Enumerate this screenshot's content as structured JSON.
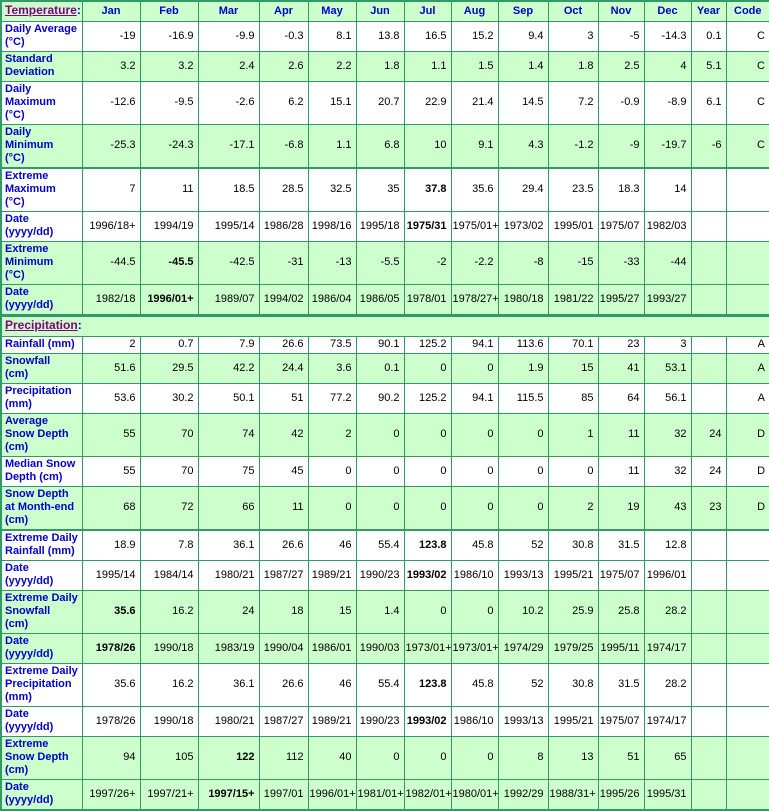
{
  "colors": {
    "border_green": "#339966",
    "row_green": "#CCFFCC",
    "row_white": "#FFFFFF",
    "label_blue": "#0000CC",
    "section_link_purple": "#800080"
  },
  "columns": [
    "Jan",
    "Feb",
    "Mar",
    "Apr",
    "May",
    "Jun",
    "Jul",
    "Aug",
    "Sep",
    "Oct",
    "Nov",
    "Dec",
    "Year",
    "Code"
  ],
  "temperature": {
    "title": "Temperature",
    "colon": ":",
    "rows": [
      {
        "label": "Daily Average\n(°C)",
        "bg": "white",
        "cells": [
          "-19",
          "-16.9",
          "-9.9",
          "-0.3",
          "8.1",
          "13.8",
          "16.5",
          "15.2",
          "9.4",
          "3",
          "-5",
          "-14.3",
          "0.1",
          "C"
        ],
        "bold": []
      },
      {
        "label": "Standard\nDeviation",
        "bg": "green",
        "cells": [
          "3.2",
          "3.2",
          "2.4",
          "2.6",
          "2.2",
          "1.8",
          "1.1",
          "1.5",
          "1.4",
          "1.8",
          "2.5",
          "4",
          "5.1",
          "C"
        ],
        "bold": []
      },
      {
        "label": "Daily\nMaximum\n(°C)",
        "bg": "white",
        "cells": [
          "-12.6",
          "-9.5",
          "-2.6",
          "6.2",
          "15.1",
          "20.7",
          "22.9",
          "21.4",
          "14.5",
          "7.2",
          "-0.9",
          "-8.9",
          "6.1",
          "C"
        ],
        "bold": []
      },
      {
        "label": "Daily\nMinimum\n(°C)",
        "bg": "green",
        "cells": [
          "-25.3",
          "-24.3",
          "-17.1",
          "-6.8",
          "1.1",
          "6.8",
          "10",
          "9.1",
          "4.3",
          "-1.2",
          "-9",
          "-19.7",
          "-6",
          "C"
        ],
        "bold": []
      },
      {
        "label": "Extreme\nMaximum\n(°C)",
        "bg": "white",
        "thick_top": true,
        "cells": [
          "7",
          "11",
          "18.5",
          "28.5",
          "32.5",
          "35",
          "37.8",
          "35.6",
          "29.4",
          "23.5",
          "18.3",
          "14",
          "",
          ""
        ],
        "bold": [
          6
        ]
      },
      {
        "label": "Date\n(yyyy/dd)",
        "bg": "white",
        "cells": [
          "1996/18+",
          "1994/19",
          "1995/14",
          "1986/28",
          "1998/16",
          "1995/18",
          "1975/31",
          "1975/01+",
          "1973/02",
          "1995/01",
          "1975/07",
          "1982/03",
          "",
          ""
        ],
        "bold": [
          6
        ]
      },
      {
        "label": "Extreme\nMinimum\n(°C)",
        "bg": "green",
        "cells": [
          "-44.5",
          "-45.5",
          "-42.5",
          "-31",
          "-13",
          "-5.5",
          "-2",
          "-2.2",
          "-8",
          "-15",
          "-33",
          "-44",
          "",
          ""
        ],
        "bold": [
          1
        ]
      },
      {
        "label": "Date\n(yyyy/dd)",
        "bg": "green",
        "cells": [
          "1982/18",
          "1996/01+",
          "1989/07",
          "1994/02",
          "1986/04",
          "1986/05",
          "1978/01",
          "1978/27+",
          "1980/18",
          "1981/22",
          "1995/27",
          "1993/27",
          "",
          ""
        ],
        "bold": [
          1
        ]
      }
    ]
  },
  "precipitation": {
    "title": "Precipitation",
    "colon": ":",
    "rows": [
      {
        "label": "Rainfall (mm)",
        "bg": "white",
        "cells": [
          "2",
          "0.7",
          "7.9",
          "26.6",
          "73.5",
          "90.1",
          "125.2",
          "94.1",
          "113.6",
          "70.1",
          "23",
          "3",
          "",
          "A"
        ],
        "bold": []
      },
      {
        "label": "Snowfall\n(cm)",
        "bg": "green",
        "cells": [
          "51.6",
          "29.5",
          "42.2",
          "24.4",
          "3.6",
          "0.1",
          "0",
          "0",
          "1.9",
          "15",
          "41",
          "53.1",
          "",
          "A"
        ],
        "bold": []
      },
      {
        "label": "Precipitation\n(mm)",
        "bg": "white",
        "cells": [
          "53.6",
          "30.2",
          "50.1",
          "51",
          "77.2",
          "90.2",
          "125.2",
          "94.1",
          "115.5",
          "85",
          "64",
          "56.1",
          "",
          "A"
        ],
        "bold": []
      },
      {
        "label": "Average\nSnow Depth\n(cm)",
        "bg": "green",
        "cells": [
          "55",
          "70",
          "74",
          "42",
          "2",
          "0",
          "0",
          "0",
          "0",
          "1",
          "11",
          "32",
          "24",
          "D"
        ],
        "bold": []
      },
      {
        "label": "Median Snow\nDepth (cm)",
        "bg": "white",
        "cells": [
          "55",
          "70",
          "75",
          "45",
          "0",
          "0",
          "0",
          "0",
          "0",
          "0",
          "11",
          "32",
          "24",
          "D"
        ],
        "bold": []
      },
      {
        "label": "Snow Depth\nat Month-end\n(cm)",
        "bg": "green",
        "cells": [
          "68",
          "72",
          "66",
          "11",
          "0",
          "0",
          "0",
          "0",
          "0",
          "2",
          "19",
          "43",
          "23",
          "D"
        ],
        "bold": []
      },
      {
        "label": "Extreme Daily\nRainfall (mm)",
        "bg": "white",
        "thick_top": true,
        "cells": [
          "18.9",
          "7.8",
          "36.1",
          "26.6",
          "46",
          "55.4",
          "123.8",
          "45.8",
          "52",
          "30.8",
          "31.5",
          "12.8",
          "",
          ""
        ],
        "bold": [
          6
        ]
      },
      {
        "label": "Date\n(yyyy/dd)",
        "bg": "white",
        "cells": [
          "1995/14",
          "1984/14",
          "1980/21",
          "1987/27",
          "1989/21",
          "1990/23",
          "1993/02",
          "1986/10",
          "1993/13",
          "1995/21",
          "1975/07",
          "1996/01",
          "",
          ""
        ],
        "bold": [
          6
        ]
      },
      {
        "label": "Extreme Daily\nSnowfall\n(cm)",
        "bg": "green",
        "cells": [
          "35.6",
          "16.2",
          "24",
          "18",
          "15",
          "1.4",
          "0",
          "0",
          "10.2",
          "25.9",
          "25.8",
          "28.2",
          "",
          ""
        ],
        "bold": [
          0
        ]
      },
      {
        "label": "Date\n(yyyy/dd)",
        "bg": "green",
        "cells": [
          "1978/26",
          "1990/18",
          "1983/19",
          "1990/04",
          "1986/01",
          "1990/03",
          "1973/01+",
          "1973/01+",
          "1974/29",
          "1979/25",
          "1995/11",
          "1974/17",
          "",
          ""
        ],
        "bold": [
          0
        ]
      },
      {
        "label": "Extreme Daily\nPrecipitation\n(mm)",
        "bg": "white",
        "cells": [
          "35.6",
          "16.2",
          "36.1",
          "26.6",
          "46",
          "55.4",
          "123.8",
          "45.8",
          "52",
          "30.8",
          "31.5",
          "28.2",
          "",
          ""
        ],
        "bold": [
          6
        ]
      },
      {
        "label": "Date\n(yyyy/dd)",
        "bg": "white",
        "cells": [
          "1978/26",
          "1990/18",
          "1980/21",
          "1987/27",
          "1989/21",
          "1990/23",
          "1993/02",
          "1986/10",
          "1993/13",
          "1995/21",
          "1975/07",
          "1974/17",
          "",
          ""
        ],
        "bold": [
          6
        ]
      },
      {
        "label": "Extreme\nSnow Depth\n(cm)",
        "bg": "green",
        "cells": [
          "94",
          "105",
          "122",
          "112",
          "40",
          "0",
          "0",
          "0",
          "8",
          "13",
          "51",
          "65",
          "",
          ""
        ],
        "bold": [
          2
        ]
      },
      {
        "label": "Date\n(yyyy/dd)",
        "bg": "green",
        "cells": [
          "1997/26+",
          "1997/21+",
          "1997/15+",
          "1997/01",
          "1996/01+",
          "1981/01+",
          "1982/01+",
          "1980/01+",
          "1992/29",
          "1988/31+",
          "1995/26",
          "1995/31",
          "",
          ""
        ],
        "bold": [
          2
        ]
      }
    ]
  }
}
